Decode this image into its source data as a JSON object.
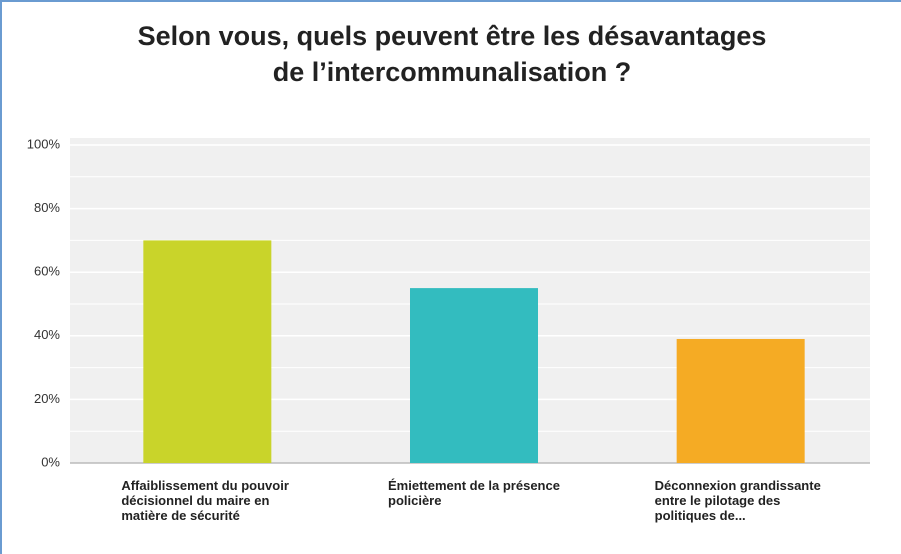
{
  "chart_data": {
    "type": "bar",
    "title": "Selon vous, quels peuvent être les désavantages de l’intercommunalisation ?",
    "categories": [
      "Affaiblissement du pouvoir décisionnel du maire en matière de sécurité",
      "Émiettement de la présence policière",
      "Déconnexion grandissante entre le pilotage des politiques de..."
    ],
    "values": [
      70,
      55,
      39
    ],
    "colors": [
      "#c9d42a",
      "#33bcbf",
      "#f5ab24"
    ],
    "ylim": [
      0,
      100
    ],
    "yticks": [
      {
        "value": 0,
        "label": "0%"
      },
      {
        "value": 20,
        "label": "20%"
      },
      {
        "value": 40,
        "label": "40%"
      },
      {
        "value": 60,
        "label": "60%"
      },
      {
        "value": 80,
        "label": "80%"
      },
      {
        "value": 100,
        "label": "100%"
      }
    ],
    "minor_yticks": [
      10,
      30,
      50,
      70,
      90
    ],
    "grid": true
  }
}
